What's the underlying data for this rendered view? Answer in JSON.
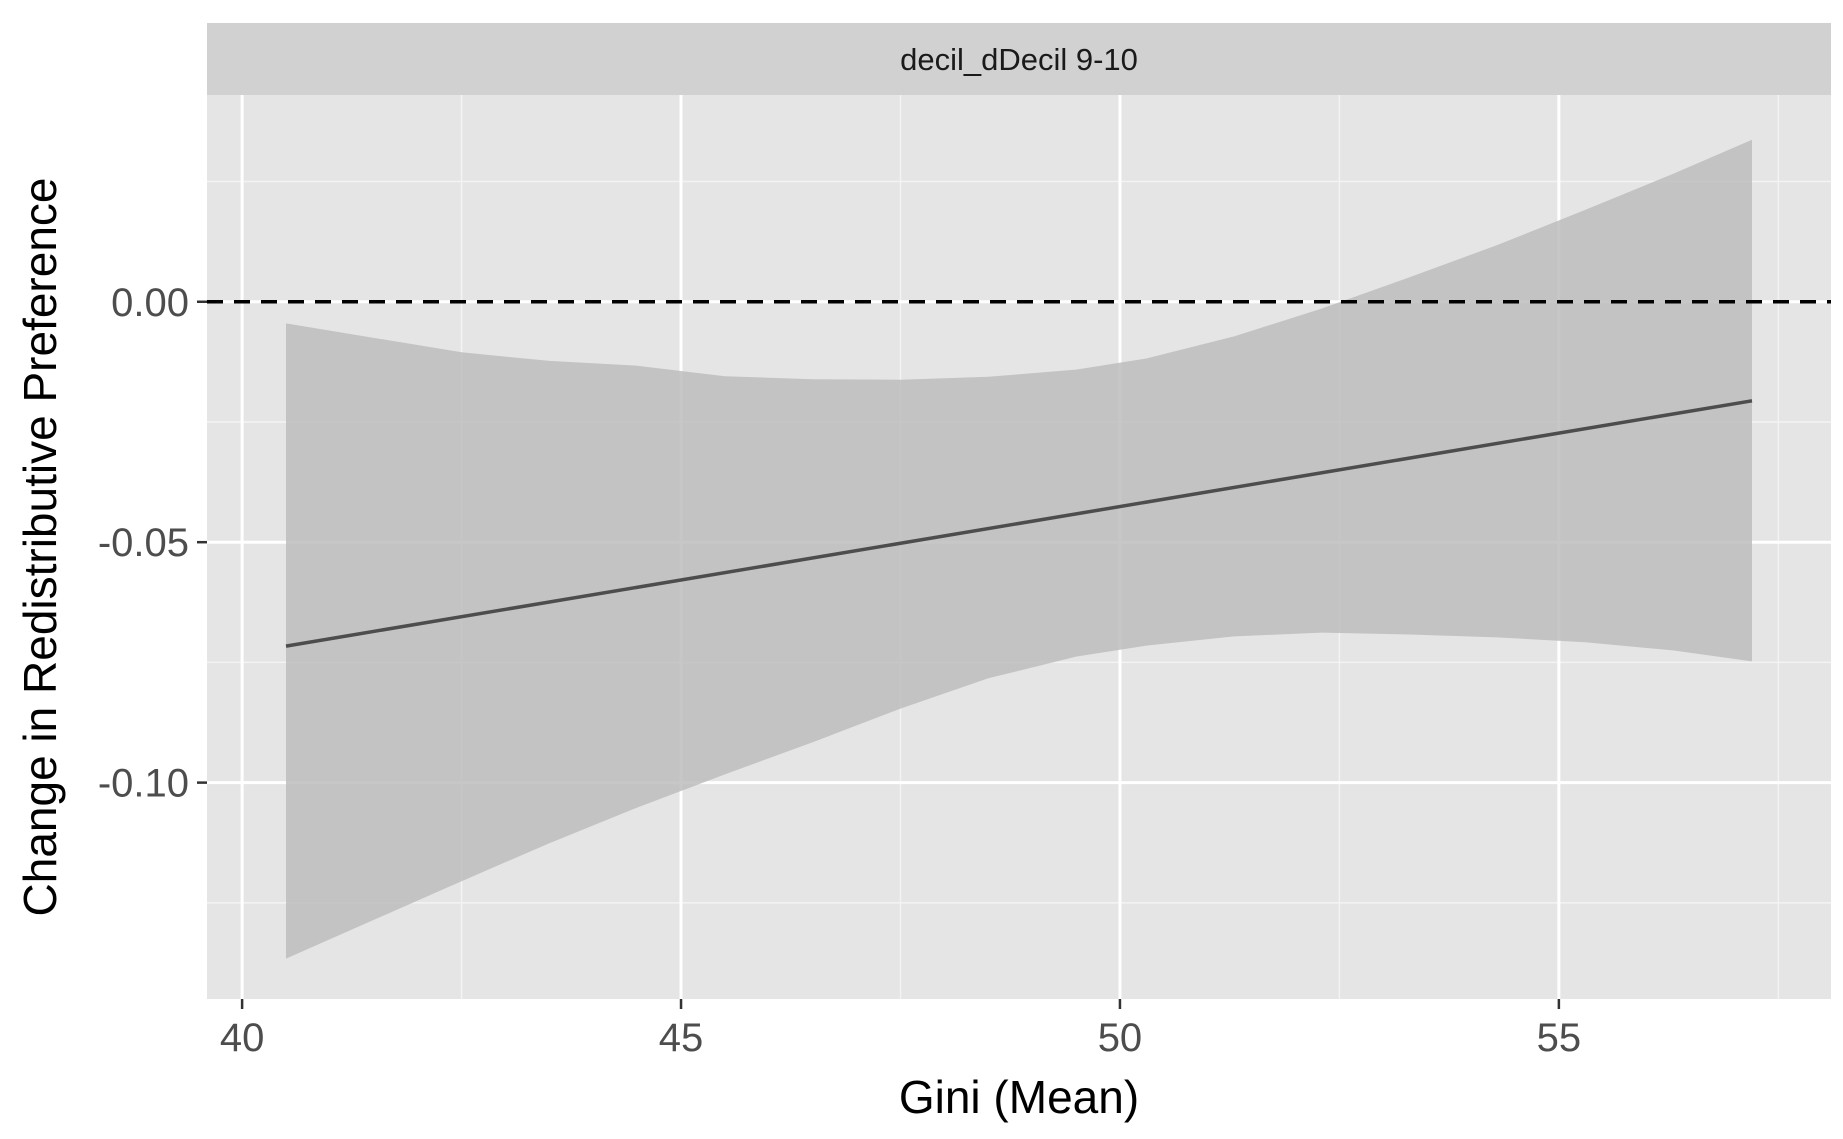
{
  "chart_data": {
    "type": "line",
    "facet_label": "decil_dDecil 9-10",
    "xlabel": "Gini (Mean)",
    "ylabel": "Change in Redistributive Preference",
    "xlim": [
      39.6,
      58.1
    ],
    "ylim": [
      -0.145,
      0.043
    ],
    "x_ticks": [
      40,
      45,
      50,
      55
    ],
    "x_tick_labels": [
      "40",
      "45",
      "50",
      "55"
    ],
    "x_minor_ticks": [
      42.5,
      47.5,
      52.5,
      57.5
    ],
    "y_ticks": [
      0.0,
      -0.05,
      -0.1
    ],
    "y_tick_labels": [
      "0.00",
      "-0.05",
      "-0.10"
    ],
    "y_minor_ticks": [
      0.025,
      -0.025,
      -0.075,
      -0.125
    ],
    "grid": true,
    "reference_line": {
      "y": 0,
      "style": "dashed",
      "color": "#000000"
    },
    "series": [
      {
        "x": [
          40.5,
          57.2
        ],
        "y": [
          -0.0716,
          -0.0206
        ],
        "color": "#4d4d4d"
      }
    ],
    "ribbon": {
      "color": "#bdbdbd",
      "x": [
        40.5,
        42.5,
        43.5,
        44.5,
        45.5,
        46.5,
        47.5,
        48.5,
        49.5,
        50.3,
        51.3,
        52.3,
        53.3,
        54.3,
        55.3,
        56.3,
        57.2
      ],
      "upper": [
        -0.0045,
        -0.0105,
        -0.0123,
        -0.0133,
        -0.0155,
        -0.0161,
        -0.0162,
        -0.0156,
        -0.0141,
        -0.0118,
        -0.0072,
        -0.0014,
        0.0051,
        0.0118,
        0.0191,
        0.0266,
        0.0337
      ],
      "lower": [
        -0.1366,
        -0.1205,
        -0.1126,
        -0.1052,
        -0.0983,
        -0.0916,
        -0.0846,
        -0.0783,
        -0.0738,
        -0.0715,
        -0.0696,
        -0.0688,
        -0.0692,
        -0.0698,
        -0.0708,
        -0.0725,
        -0.0748
      ]
    }
  }
}
